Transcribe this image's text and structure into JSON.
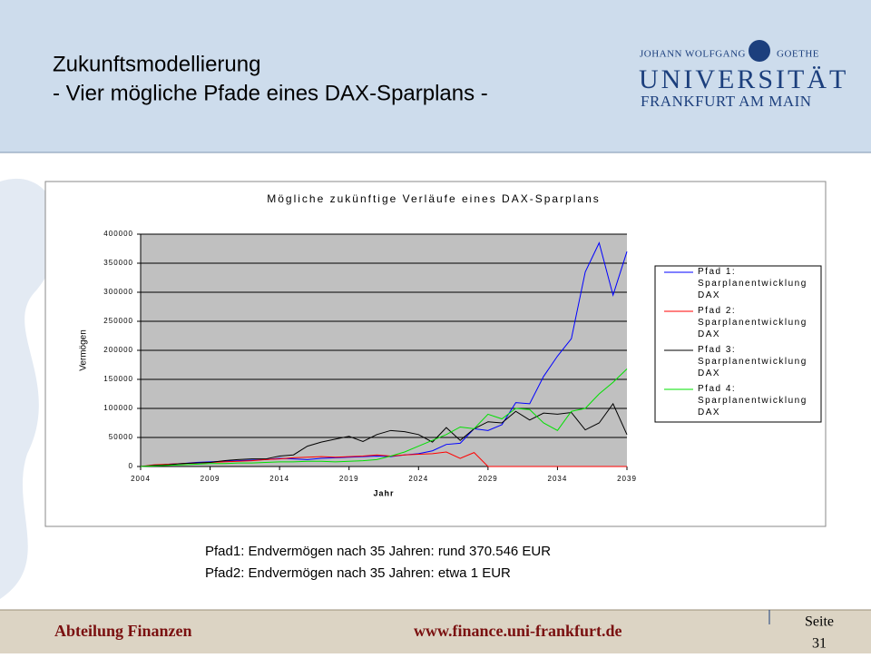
{
  "header": {
    "title_line1": "Zukunftsmodellierung",
    "title_line2": "- Vier mögliche Pfade eines DAX-Sparplans -"
  },
  "logo": {
    "line1": "JOHANN WOLFGANG",
    "line2": "GOETHE",
    "line3": "UNIVERSITÄT",
    "line4": "FRANKFURT AM MAIN"
  },
  "chart_data": {
    "type": "line",
    "title": "Mögliche zukünftige Verläufe eines DAX-Sparplans",
    "x_label": "Jahr",
    "y_label": "Vermögen",
    "x": [
      2004,
      2005,
      2006,
      2007,
      2008,
      2009,
      2010,
      2011,
      2012,
      2013,
      2014,
      2015,
      2016,
      2017,
      2018,
      2019,
      2020,
      2021,
      2022,
      2023,
      2024,
      2025,
      2026,
      2027,
      2028,
      2029,
      2030,
      2031,
      2032,
      2033,
      2034,
      2035,
      2036,
      2037,
      2038,
      2039
    ],
    "xlim": [
      2004,
      2039
    ],
    "xticks": [
      2004,
      2009,
      2014,
      2019,
      2024,
      2029,
      2034,
      2039
    ],
    "ylim": [
      0,
      400000
    ],
    "yticks": [
      0,
      50000,
      100000,
      150000,
      200000,
      250000,
      300000,
      350000,
      400000
    ],
    "grid": true,
    "legend": "right",
    "plot_background": "#c0c0c0",
    "series": [
      {
        "name": "Pfad 1: Sparplanentwicklung DAX",
        "color": "#0000ff",
        "values": [
          0,
          2000,
          4000,
          5000,
          7000,
          8000,
          9000,
          10000,
          11000,
          12000,
          14000,
          13000,
          12000,
          14000,
          15000,
          16000,
          17000,
          18000,
          17000,
          20000,
          22000,
          27000,
          38000,
          40000,
          65000,
          62000,
          72000,
          110000,
          108000,
          155000,
          190000,
          220000,
          335000,
          385000,
          295000,
          370000
        ]
      },
      {
        "name": "Pfad 2: Sparplanentwicklung DAX",
        "color": "#ff0000",
        "values": [
          0,
          3000,
          4000,
          5000,
          6000,
          7000,
          8000,
          9000,
          10000,
          12000,
          13000,
          15000,
          16000,
          17000,
          16000,
          17000,
          18000,
          20000,
          18000,
          20000,
          21000,
          22000,
          25000,
          14000,
          24000,
          1,
          1,
          1,
          1,
          1,
          1,
          1,
          1,
          1,
          1,
          1
        ]
      },
      {
        "name": "Pfad 3: Sparplanentwicklung DAX",
        "color": "#000000",
        "values": [
          0,
          2000,
          3000,
          5000,
          6000,
          7000,
          10000,
          12000,
          13000,
          13000,
          18000,
          20000,
          35000,
          42000,
          47000,
          52000,
          43000,
          55000,
          62000,
          60000,
          55000,
          42000,
          67000,
          45000,
          65000,
          77000,
          75000,
          95000,
          80000,
          92000,
          90000,
          93000,
          63000,
          75000,
          108000,
          55000
        ]
      },
      {
        "name": "Pfad 4: Sparplanentwicklung DAX",
        "color": "#00e000",
        "values": [
          0,
          1000,
          2000,
          3000,
          4000,
          5000,
          5000,
          6000,
          6000,
          7000,
          8000,
          8000,
          9000,
          9000,
          8000,
          9000,
          10000,
          12000,
          18000,
          25000,
          35000,
          45000,
          55000,
          68000,
          65000,
          90000,
          82000,
          100000,
          98000,
          75000,
          62000,
          95000,
          100000,
          125000,
          145000,
          168000
        ]
      }
    ]
  },
  "notes": [
    "Pfad1: Endvermögen nach 35 Jahren: rund 370.546 EUR",
    "Pfad2: Endvermögen nach 35 Jahren: etwa 1 EUR"
  ],
  "footer": {
    "department": "Abteilung Finanzen",
    "url": "www.finance.uni-frankfurt.de",
    "page_label": "Seite",
    "page_number": "31"
  }
}
